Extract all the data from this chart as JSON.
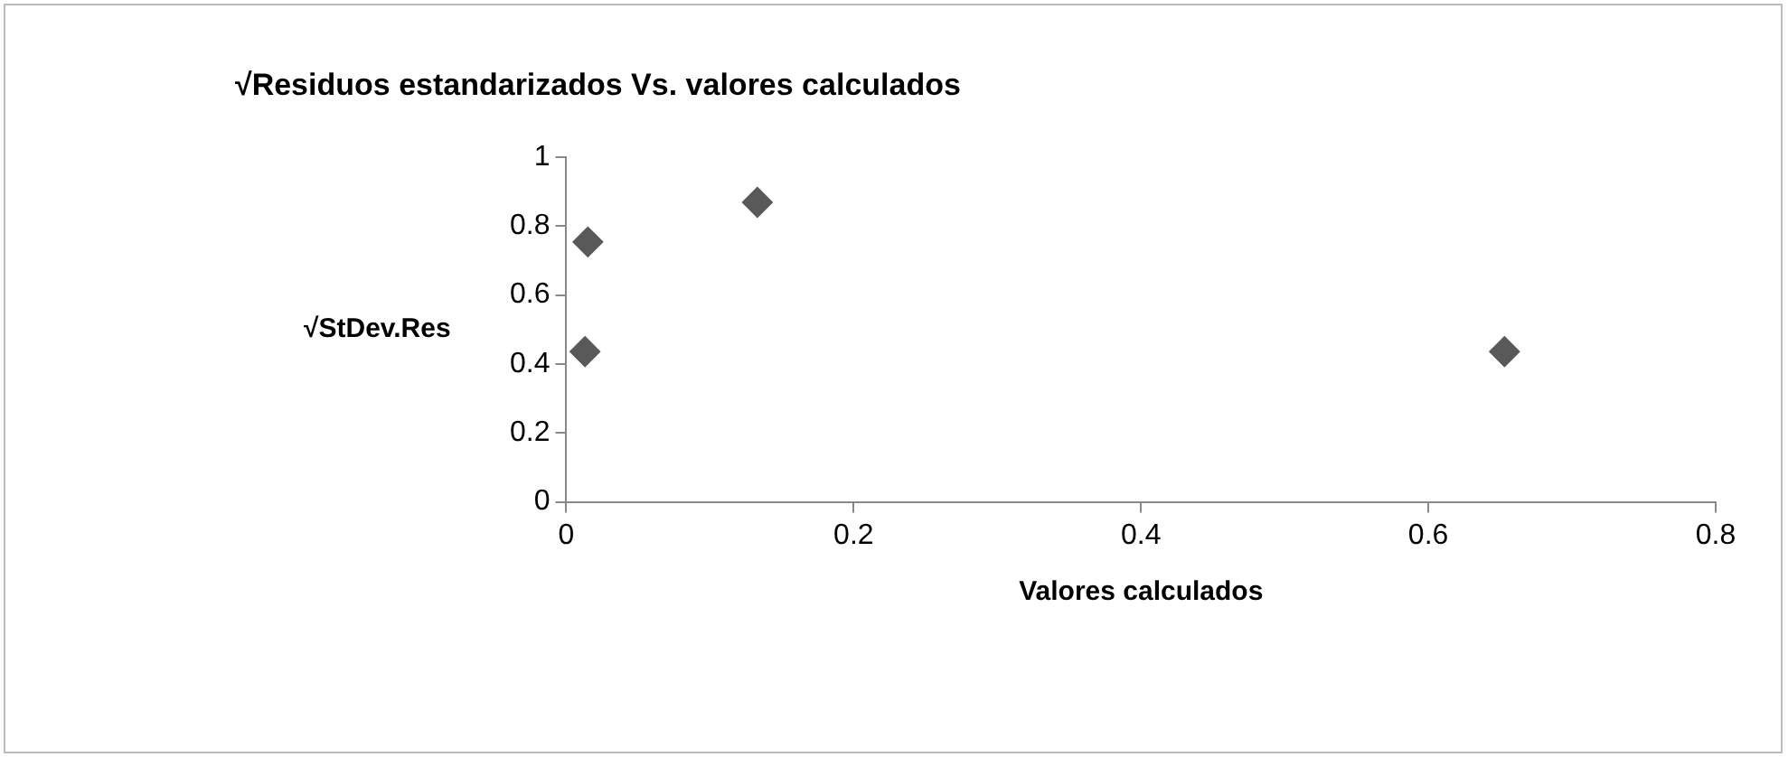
{
  "chart_data": {
    "type": "scatter",
    "title": "√Residuos estandarizados Vs. valores calculados",
    "xlabel": "Valores calculados",
    "ylabel": "√StDev.Res",
    "x": [
      0.015,
      0.013,
      0.133,
      0.653
    ],
    "values": [
      0.754,
      0.436,
      0.869,
      0.436
    ],
    "color": "#595959",
    "marker": "diamond",
    "xlim": [
      0,
      0.8
    ],
    "xticks": [
      0,
      0.2,
      0.4,
      0.6,
      0.8
    ],
    "ylim": [
      0,
      1
    ],
    "yticks": [
      0,
      0.2,
      0.4,
      0.6,
      0.8,
      {
        "value": 1,
        "label": "1"
      }
    ],
    "grid": false,
    "legend": false
  }
}
